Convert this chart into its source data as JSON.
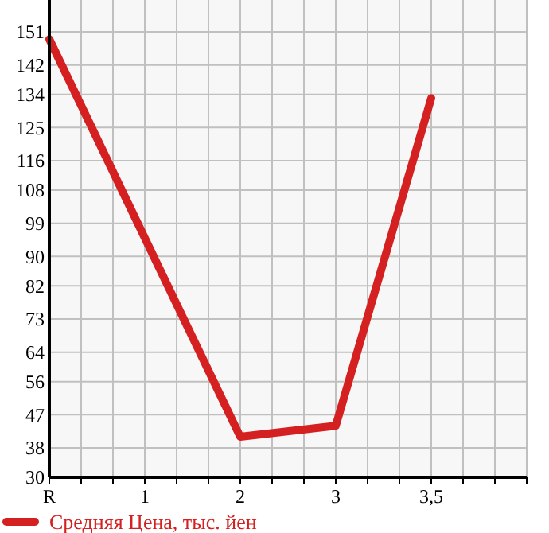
{
  "chart_data": {
    "type": "line",
    "categories": [
      "R",
      "1",
      "2",
      "3",
      "3,5",
      null
    ],
    "series": [
      {
        "name": "Средняя Цена, тыс. йен",
        "color": "#d42020",
        "values": [
          149,
          null,
          41,
          44,
          133,
          null
        ]
      }
    ],
    "ylim": [
      30,
      159.64
    ],
    "yticks": [
      30,
      38,
      47,
      56,
      64,
      73,
      82,
      90,
      99,
      108,
      116,
      125,
      134,
      142,
      151
    ],
    "grid": true,
    "legend": "bottom left",
    "marker": "none"
  }
}
